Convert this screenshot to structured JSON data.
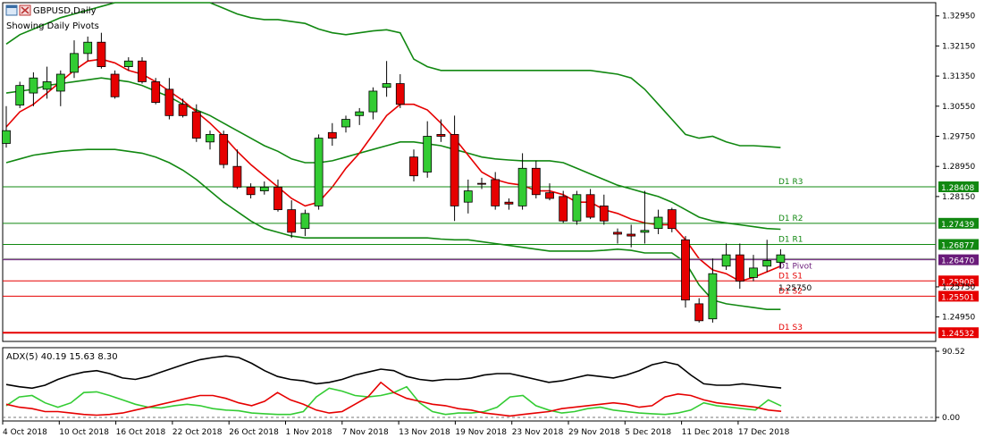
{
  "window": {
    "title": "GBPUSD,Daily",
    "subtitle": "Showing Daily Pivots",
    "icon_names": [
      "window-restore-icon",
      "window-close-icon"
    ]
  },
  "colors": {
    "grid_line": "#000000",
    "bull_fill": "#33cc33",
    "bear_fill": "#e60000",
    "candle_outline": "#000000",
    "band_line": "#118811",
    "ma_line": "#e60000",
    "pivot_green": "#118811",
    "pivot_red": "#e60000",
    "pivot_purple": "#6a1b7a",
    "adx_main": "#000000",
    "adx_plus_di": "#33cc33",
    "adx_minus_di": "#e60000"
  },
  "chart_data": [
    {
      "type": "candlestick",
      "symbol": "GBPUSD",
      "timeframe": "Daily",
      "ylim": [
        1.243,
        1.333
      ],
      "y_ticks": [
        "1.32950",
        "1.32150",
        "1.31350",
        "1.30550",
        "1.29750",
        "1.28950",
        "1.28150",
        "1.25750",
        "1.24950"
      ],
      "x_ticks": [
        "4 Oct 2018",
        "10 Oct 2018",
        "16 Oct 2018",
        "22 Oct 2018",
        "26 Oct 2018",
        "1 Nov 2018",
        "7 Nov 2018",
        "13 Nov 2018",
        "19 Nov 2018",
        "23 Nov 2018",
        "29 Nov 2018",
        "5 Dec 2018",
        "11 Dec 2018",
        "17 Dec 2018"
      ],
      "candles": [
        {
          "o": 1.2956,
          "h": 1.3055,
          "l": 1.2945,
          "c": 1.299
        },
        {
          "o": 1.3058,
          "h": 1.312,
          "l": 1.305,
          "c": 1.311
        },
        {
          "o": 1.309,
          "h": 1.3145,
          "l": 1.3055,
          "c": 1.313
        },
        {
          "o": 1.31,
          "h": 1.316,
          "l": 1.3075,
          "c": 1.312
        },
        {
          "o": 1.3095,
          "h": 1.315,
          "l": 1.3055,
          "c": 1.314
        },
        {
          "o": 1.3145,
          "h": 1.323,
          "l": 1.313,
          "c": 1.3195
        },
        {
          "o": 1.3195,
          "h": 1.324,
          "l": 1.3175,
          "c": 1.3225
        },
        {
          "o": 1.3225,
          "h": 1.325,
          "l": 1.3155,
          "c": 1.316
        },
        {
          "o": 1.314,
          "h": 1.315,
          "l": 1.3075,
          "c": 1.308
        },
        {
          "o": 1.316,
          "h": 1.3185,
          "l": 1.315,
          "c": 1.3175
        },
        {
          "o": 1.3175,
          "h": 1.3185,
          "l": 1.3115,
          "c": 1.312
        },
        {
          "o": 1.312,
          "h": 1.313,
          "l": 1.306,
          "c": 1.3065
        },
        {
          "o": 1.31,
          "h": 1.313,
          "l": 1.302,
          "c": 1.303
        },
        {
          "o": 1.306,
          "h": 1.3075,
          "l": 1.3025,
          "c": 1.303
        },
        {
          "o": 1.304,
          "h": 1.306,
          "l": 1.296,
          "c": 1.297
        },
        {
          "o": 1.296,
          "h": 1.299,
          "l": 1.294,
          "c": 1.298
        },
        {
          "o": 1.298,
          "h": 1.299,
          "l": 1.289,
          "c": 1.29
        },
        {
          "o": 1.2895,
          "h": 1.294,
          "l": 1.2835,
          "c": 1.284
        },
        {
          "o": 1.284,
          "h": 1.285,
          "l": 1.281,
          "c": 1.282
        },
        {
          "o": 1.283,
          "h": 1.2855,
          "l": 1.282,
          "c": 1.284
        },
        {
          "o": 1.284,
          "h": 1.286,
          "l": 1.2775,
          "c": 1.278
        },
        {
          "o": 1.278,
          "h": 1.2805,
          "l": 1.2705,
          "c": 1.272
        },
        {
          "o": 1.273,
          "h": 1.278,
          "l": 1.271,
          "c": 1.277
        },
        {
          "o": 1.279,
          "h": 1.298,
          "l": 1.278,
          "c": 1.297
        },
        {
          "o": 1.2985,
          "h": 1.301,
          "l": 1.295,
          "c": 1.297
        },
        {
          "o": 1.3,
          "h": 1.303,
          "l": 1.2985,
          "c": 1.302
        },
        {
          "o": 1.303,
          "h": 1.305,
          "l": 1.3005,
          "c": 1.304
        },
        {
          "o": 1.304,
          "h": 1.3105,
          "l": 1.302,
          "c": 1.3095
        },
        {
          "o": 1.3105,
          "h": 1.3175,
          "l": 1.308,
          "c": 1.3115
        },
        {
          "o": 1.3115,
          "h": 1.314,
          "l": 1.305,
          "c": 1.306
        },
        {
          "o": 1.292,
          "h": 1.294,
          "l": 1.2855,
          "c": 1.287
        },
        {
          "o": 1.288,
          "h": 1.3015,
          "l": 1.2865,
          "c": 1.2975
        },
        {
          "o": 1.298,
          "h": 1.302,
          "l": 1.296,
          "c": 1.2975
        },
        {
          "o": 1.298,
          "h": 1.303,
          "l": 1.275,
          "c": 1.279
        },
        {
          "o": 1.28,
          "h": 1.286,
          "l": 1.277,
          "c": 1.283
        },
        {
          "o": 1.285,
          "h": 1.2865,
          "l": 1.2835,
          "c": 1.2848
        },
        {
          "o": 1.286,
          "h": 1.288,
          "l": 1.278,
          "c": 1.279
        },
        {
          "o": 1.28,
          "h": 1.281,
          "l": 1.278,
          "c": 1.2795
        },
        {
          "o": 1.279,
          "h": 1.293,
          "l": 1.278,
          "c": 1.289
        },
        {
          "o": 1.289,
          "h": 1.291,
          "l": 1.281,
          "c": 1.282
        },
        {
          "o": 1.2825,
          "h": 1.285,
          "l": 1.2805,
          "c": 1.281
        },
        {
          "o": 1.2815,
          "h": 1.283,
          "l": 1.2745,
          "c": 1.275
        },
        {
          "o": 1.275,
          "h": 1.283,
          "l": 1.274,
          "c": 1.282
        },
        {
          "o": 1.282,
          "h": 1.2835,
          "l": 1.2755,
          "c": 1.276
        },
        {
          "o": 1.279,
          "h": 1.282,
          "l": 1.274,
          "c": 1.275
        },
        {
          "o": 1.272,
          "h": 1.273,
          "l": 1.269,
          "c": 1.2715
        },
        {
          "o": 1.2715,
          "h": 1.274,
          "l": 1.268,
          "c": 1.271
        },
        {
          "o": 1.272,
          "h": 1.283,
          "l": 1.269,
          "c": 1.2725
        },
        {
          "o": 1.273,
          "h": 1.278,
          "l": 1.2715,
          "c": 1.276
        },
        {
          "o": 1.278,
          "h": 1.2785,
          "l": 1.272,
          "c": 1.273
        },
        {
          "o": 1.27,
          "h": 1.271,
          "l": 1.252,
          "c": 1.254
        },
        {
          "o": 1.253,
          "h": 1.2545,
          "l": 1.248,
          "c": 1.2485
        },
        {
          "o": 1.249,
          "h": 1.265,
          "l": 1.248,
          "c": 1.261
        },
        {
          "o": 1.263,
          "h": 1.269,
          "l": 1.262,
          "c": 1.266
        },
        {
          "o": 1.266,
          "h": 1.269,
          "l": 1.257,
          "c": 1.259
        },
        {
          "o": 1.26,
          "h": 1.266,
          "l": 1.259,
          "c": 1.2625
        },
        {
          "o": 1.263,
          "h": 1.27,
          "l": 1.2615,
          "c": 1.2645
        },
        {
          "o": 1.264,
          "h": 1.2675,
          "l": 1.2625,
          "c": 1.266
        }
      ],
      "bollinger_upper": [
        1.322,
        1.3245,
        1.326,
        1.3275,
        1.329,
        1.33,
        1.331,
        1.332,
        1.333,
        1.333,
        1.333,
        1.333,
        1.333,
        1.333,
        1.333,
        1.333,
        1.3315,
        1.33,
        1.329,
        1.3285,
        1.3285,
        1.328,
        1.3275,
        1.326,
        1.325,
        1.3245,
        1.325,
        1.3255,
        1.3258,
        1.325,
        1.318,
        1.316,
        1.315,
        1.315,
        1.315,
        1.315,
        1.315,
        1.315,
        1.315,
        1.315,
        1.315,
        1.315,
        1.315,
        1.315,
        1.3145,
        1.314,
        1.313,
        1.31,
        1.306,
        1.302,
        1.298,
        1.297,
        1.2975,
        1.296,
        1.295,
        1.295,
        1.2948,
        1.2945
      ],
      "bollinger_mid": [
        1.309,
        1.3095,
        1.31,
        1.311,
        1.3115,
        1.312,
        1.3125,
        1.313,
        1.3125,
        1.312,
        1.311,
        1.3095,
        1.308,
        1.306,
        1.3045,
        1.303,
        1.301,
        1.299,
        1.297,
        1.295,
        1.2935,
        1.2915,
        1.2905,
        1.2905,
        1.291,
        1.292,
        1.293,
        1.294,
        1.295,
        1.296,
        1.296,
        1.2955,
        1.295,
        1.294,
        1.293,
        1.292,
        1.2915,
        1.2912,
        1.291,
        1.291,
        1.291,
        1.2905,
        1.289,
        1.2875,
        1.286,
        1.2845,
        1.2835,
        1.2825,
        1.2815,
        1.28,
        1.278,
        1.276,
        1.275,
        1.2745,
        1.274,
        1.2735,
        1.273,
        1.2728
      ],
      "bollinger_lower": [
        1.2905,
        1.2915,
        1.2925,
        1.293,
        1.2935,
        1.2938,
        1.294,
        1.294,
        1.294,
        1.2935,
        1.293,
        1.292,
        1.2905,
        1.2885,
        1.286,
        1.283,
        1.28,
        1.2775,
        1.275,
        1.273,
        1.272,
        1.271,
        1.2705,
        1.2705,
        1.2705,
        1.2705,
        1.2705,
        1.2705,
        1.2705,
        1.2705,
        1.2705,
        1.2705,
        1.2702,
        1.27,
        1.27,
        1.2695,
        1.269,
        1.2685,
        1.268,
        1.2675,
        1.267,
        1.267,
        1.267,
        1.267,
        1.2672,
        1.2675,
        1.2672,
        1.2665,
        1.2665,
        1.2665,
        1.264,
        1.258,
        1.254,
        1.253,
        1.2525,
        1.252,
        1.2515,
        1.2515
      ],
      "moving_average": [
        1.3,
        1.304,
        1.306,
        1.309,
        1.312,
        1.315,
        1.3175,
        1.318,
        1.317,
        1.315,
        1.314,
        1.312,
        1.3095,
        1.307,
        1.304,
        1.301,
        1.2975,
        1.2935,
        1.29,
        1.287,
        1.284,
        1.281,
        1.279,
        1.28,
        1.284,
        1.289,
        1.293,
        1.298,
        1.303,
        1.306,
        1.306,
        1.3045,
        1.301,
        1.297,
        1.2925,
        1.288,
        1.286,
        1.285,
        1.2845,
        1.283,
        1.283,
        1.282,
        1.28,
        1.28,
        1.278,
        1.277,
        1.2755,
        1.2745,
        1.274,
        1.274,
        1.27,
        1.265,
        1.262,
        1.261,
        1.259,
        1.26,
        1.2615,
        1.263
      ],
      "pivots": [
        {
          "label": "D1 R3",
          "value": 1.28408,
          "price_label": "1.28408",
          "kind": "green"
        },
        {
          "label": "D1 R2",
          "value": 1.27439,
          "price_label": "1.27439",
          "kind": "green"
        },
        {
          "label": "D1 R1",
          "value": 1.26877,
          "price_label": "1.26877",
          "kind": "green"
        },
        {
          "label": "D1 Pivot",
          "value": 1.2647,
          "price_label": "1.26470",
          "kind": "purple"
        },
        {
          "label": "D1 S1",
          "value": 1.25908,
          "price_label": "1.25908",
          "kind": "red"
        },
        {
          "label": "D1 S2",
          "value": 1.25501,
          "price_label": "1.25501",
          "kind": "red"
        },
        {
          "label": "D1 S3",
          "value": 1.24532,
          "price_label": "1.24532",
          "kind": "red"
        }
      ],
      "current_price_line": 1.265,
      "extra_tick_labels": [
        "1.25750"
      ]
    },
    {
      "type": "line",
      "title": "ADX(5) 40.19 15.63 8.30",
      "ylim": [
        0,
        90.52
      ],
      "y_ticks": [
        "90.52",
        "0.00"
      ],
      "series": [
        {
          "name": "ADX",
          "values": [
            45,
            42,
            40,
            44,
            52,
            58,
            62,
            64,
            60,
            54,
            52,
            56,
            62,
            68,
            74,
            79,
            82,
            84,
            82,
            74,
            64,
            56,
            52,
            50,
            46,
            48,
            52,
            58,
            62,
            66,
            64,
            56,
            52,
            50,
            52,
            52,
            54,
            58,
            60,
            60,
            56,
            52,
            48,
            50,
            54,
            58,
            56,
            54,
            58,
            64,
            72,
            76,
            72,
            58,
            46,
            44,
            44,
            46,
            44,
            42,
            40.19
          ]
        },
        {
          "name": "+DI",
          "values": [
            16,
            28,
            30,
            20,
            14,
            20,
            34,
            35,
            30,
            24,
            18,
            14,
            13,
            16,
            18,
            16,
            12,
            10,
            9,
            6,
            5,
            4,
            4,
            8,
            28,
            40,
            36,
            30,
            28,
            30,
            34,
            42,
            20,
            8,
            4,
            6,
            6,
            8,
            14,
            28,
            30,
            16,
            10,
            6,
            8,
            12,
            14,
            10,
            8,
            6,
            5,
            4,
            6,
            10,
            20,
            16,
            14,
            12,
            10,
            24,
            15.63
          ]
        },
        {
          "name": "-DI",
          "values": [
            18,
            14,
            12,
            8,
            8,
            6,
            4,
            3,
            4,
            6,
            10,
            14,
            18,
            22,
            26,
            30,
            30,
            26,
            20,
            16,
            22,
            34,
            24,
            18,
            10,
            6,
            8,
            18,
            28,
            48,
            34,
            26,
            22,
            18,
            16,
            12,
            10,
            6,
            4,
            2,
            4,
            6,
            8,
            12,
            14,
            16,
            18,
            20,
            18,
            14,
            16,
            28,
            32,
            30,
            24,
            20,
            18,
            16,
            14,
            10,
            8.3
          ]
        }
      ]
    }
  ]
}
